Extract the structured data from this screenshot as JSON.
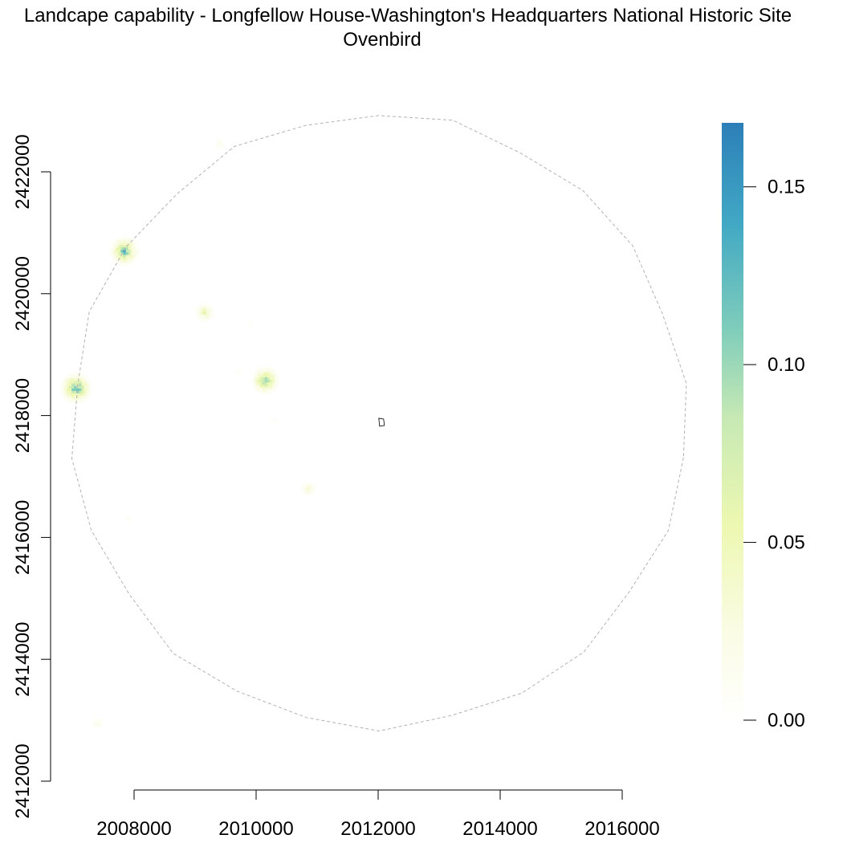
{
  "chart_data": {
    "type": "heatmap",
    "title": "Landcape capability - Longfellow House-Washington's Headquarters National Historic Site",
    "subtitle": "Ovenbird",
    "xlabel": "",
    "ylabel": "",
    "xlim": [
      2006400,
      2017600
    ],
    "ylim": [
      2412000,
      2423500
    ],
    "x_ticks": [
      2008000,
      2010000,
      2012000,
      2014000,
      2016000
    ],
    "x_tick_labels": [
      "2008000",
      "2010000",
      "2012000",
      "2014000",
      "2016000"
    ],
    "y_ticks": [
      2412000,
      2414000,
      2416000,
      2418000,
      2420000,
      2422000
    ],
    "y_tick_labels": [
      "2412000",
      "2414000",
      "2416000",
      "2418000",
      "2420000",
      "2422000"
    ],
    "buffer_boundary": {
      "style": "dashed",
      "color": "#b3b3b3",
      "center": [
        2012010,
        2417910
      ],
      "radius": 5030
    },
    "park_boundary": {
      "center": [
        2012050,
        2417890
      ]
    },
    "colorscale": {
      "min": 0.0,
      "max": 0.168,
      "stops": [
        {
          "value": 0.0,
          "color": "#ffffff"
        },
        {
          "value": 0.025,
          "color": "#fafce4"
        },
        {
          "value": 0.055,
          "color": "#edf8b1"
        },
        {
          "value": 0.085,
          "color": "#c7e9b4"
        },
        {
          "value": 0.11,
          "color": "#7fcdbb"
        },
        {
          "value": 0.14,
          "color": "#41a8c4"
        },
        {
          "value": 0.168,
          "color": "#2c7fb8"
        }
      ],
      "ticks": [
        0.0,
        0.05,
        0.1,
        0.15
      ],
      "tick_labels": [
        "0.00",
        "0.05",
        "0.10",
        "0.15"
      ]
    },
    "hotspots": [
      {
        "x": 2007840,
        "y": 2420700,
        "peak": 0.15
      },
      {
        "x": 2007050,
        "y": 2418450,
        "peak": 0.165
      },
      {
        "x": 2010150,
        "y": 2418580,
        "peak": 0.14
      },
      {
        "x": 2009150,
        "y": 2419690,
        "peak": 0.07
      },
      {
        "x": 2010850,
        "y": 2416800,
        "peak": 0.045
      },
      {
        "x": 2009400,
        "y": 2422450,
        "peak": 0.02
      },
      {
        "x": 2007400,
        "y": 2412950,
        "peak": 0.025
      },
      {
        "x": 2009700,
        "y": 2418700,
        "peak": 0.012
      },
      {
        "x": 2009900,
        "y": 2419500,
        "peak": 0.01
      },
      {
        "x": 2010300,
        "y": 2417900,
        "peak": 0.012
      },
      {
        "x": 2007900,
        "y": 2416300,
        "peak": 0.01
      }
    ]
  }
}
